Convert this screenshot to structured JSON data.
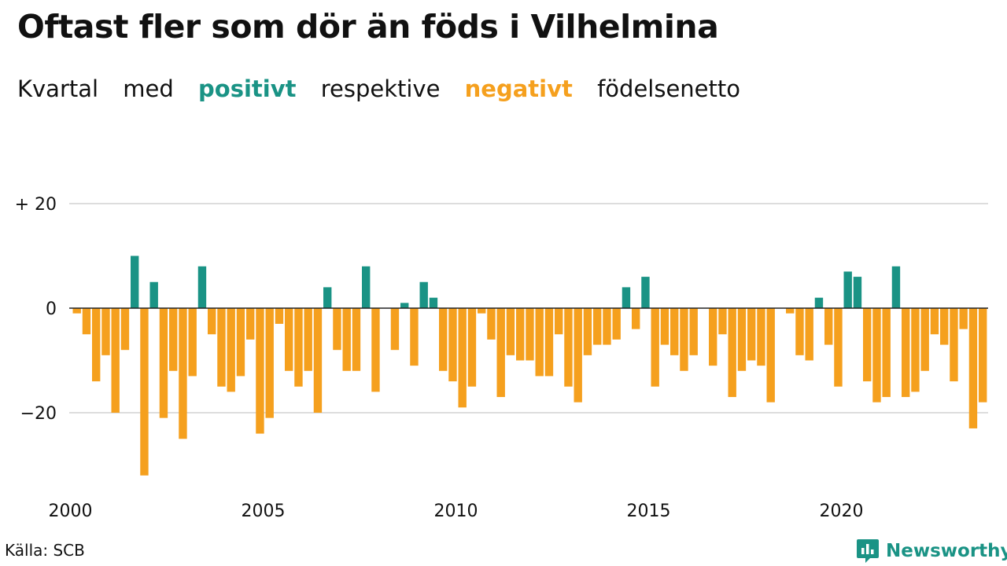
{
  "title": "Oftast fler som dör än föds i Vilhelmina",
  "subtitle": {
    "part1": "Kvartal",
    "part2": "med",
    "positive": "positivt",
    "part3": "respektive",
    "negative": "negativt",
    "part4": "födelsenetto"
  },
  "colors": {
    "positive": "#1a9385",
    "negative": "#f5a01e",
    "grid": "#dddddd",
    "zero_line": "#222222",
    "brand": "#1a9385"
  },
  "source": "Källa: SCB",
  "brand": {
    "name": "Newsworthy",
    "icon": "bar-chart-speech-bubble-icon"
  },
  "chart_data": {
    "type": "bar",
    "x_start": "2000 Q1",
    "frequency": "quarter",
    "xticks": [
      "2000",
      "2005",
      "2010",
      "2015",
      "2020"
    ],
    "yticks": [
      "+ 20",
      "0",
      "−20"
    ],
    "ylim": [
      -33,
      20
    ],
    "grid": true,
    "values": [
      -1,
      -5,
      -14,
      -9,
      -20,
      -8,
      10,
      -32,
      5,
      -21,
      -12,
      -25,
      -13,
      8,
      -5,
      -15,
      -16,
      -13,
      -6,
      -24,
      -21,
      -3,
      -12,
      -15,
      -12,
      -20,
      4,
      -8,
      -12,
      -12,
      8,
      -16,
      0,
      -8,
      1,
      -11,
      5,
      2,
      -12,
      -14,
      -19,
      -15,
      -1,
      -6,
      -17,
      -9,
      -10,
      -10,
      -13,
      -13,
      -5,
      -15,
      -18,
      -9,
      -7,
      -7,
      -6,
      4,
      -4,
      6,
      -15,
      -7,
      -9,
      -12,
      -9,
      0,
      -11,
      -5,
      -17,
      -12,
      -10,
      -11,
      -18,
      0,
      -1,
      -9,
      -10,
      2,
      -7,
      -15,
      7,
      6,
      -14,
      -18,
      -17,
      8,
      -17,
      -16,
      -12,
      -5,
      -7,
      -14,
      -4,
      -23,
      -18
    ]
  }
}
